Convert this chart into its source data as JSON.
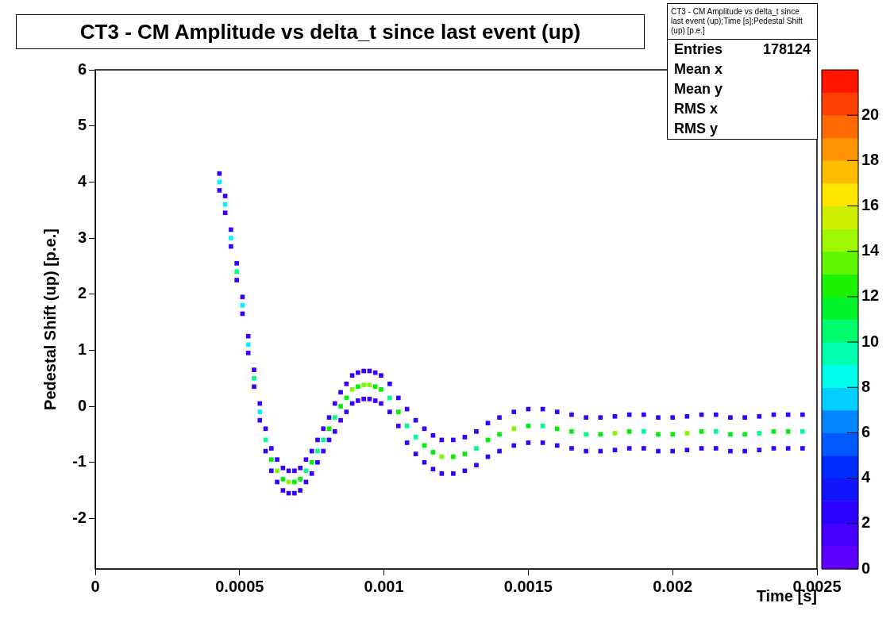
{
  "chart_data": {
    "type": "scatter",
    "title": "CT3 - CM Amplitude vs delta_t since last event (up)",
    "xlabel": "Time [s]",
    "ylabel": "Pedestal Shift (up) [p.e.]",
    "annotations": [
      "CT3 - CM Amplitude vs delta_t since last event (up);Time [s];Pedestal Shift (up) [p.e.]",
      "Entries",
      "178124",
      "Mean x",
      "Mean y",
      "RMS x",
      "RMS y"
    ],
    "x": [
      0.00043,
      0.00045,
      0.00047,
      0.00049,
      0.00051,
      0.00053,
      0.00055,
      0.00057,
      0.00059,
      0.00061,
      0.00063,
      0.00065,
      0.00067,
      0.00069,
      0.00071,
      0.00073,
      0.00075,
      0.00077,
      0.00079,
      0.00081,
      0.00083,
      0.00085,
      0.00087,
      0.00089,
      0.00091,
      0.00093,
      0.00095,
      0.00097,
      0.00099,
      0.00102,
      0.00105,
      0.00108,
      0.00111,
      0.00114,
      0.00117,
      0.0012,
      0.00124,
      0.00128,
      0.00132,
      0.00136,
      0.0014,
      0.00145,
      0.0015,
      0.00155,
      0.0016,
      0.00165,
      0.0017,
      0.00175,
      0.0018,
      0.00185,
      0.0019,
      0.00195,
      0.002,
      0.00205,
      0.0021,
      0.00215,
      0.0022,
      0.00225,
      0.0023,
      0.00235,
      0.0024,
      0.00245
    ],
    "series": [
      {
        "values": [
          4.15,
          3.75,
          3.15,
          2.55,
          1.95,
          1.25,
          0.65,
          0.05,
          -0.4,
          -0.75,
          -0.95,
          -1.1,
          -1.15,
          -1.15,
          -1.1,
          -0.95,
          -0.8,
          -0.6,
          -0.4,
          -0.2,
          0.05,
          0.25,
          0.4,
          0.55,
          0.6,
          0.63,
          0.63,
          0.6,
          0.55,
          0.4,
          0.15,
          -0.05,
          -0.25,
          -0.4,
          -0.52,
          -0.6,
          -0.6,
          -0.55,
          -0.45,
          -0.3,
          -0.2,
          -0.1,
          -0.05,
          -0.05,
          -0.1,
          -0.15,
          -0.2,
          -0.2,
          -0.18,
          -0.15,
          -0.15,
          -0.2,
          -0.2,
          -0.18,
          -0.15,
          -0.15,
          -0.2,
          -0.2,
          -0.18,
          -0.15,
          -0.15,
          -0.15
        ],
        "color": "#3800ff"
      },
      {
        "values": [
          4.0,
          3.6,
          3.0,
          2.4,
          1.8,
          1.1,
          0.5,
          -0.1,
          -0.6,
          -0.95,
          -1.15,
          -1.3,
          -1.35,
          -1.35,
          -1.3,
          -1.15,
          -1.0,
          -0.8,
          -0.6,
          -0.4,
          -0.2,
          0.0,
          0.15,
          0.3,
          0.35,
          0.38,
          0.38,
          0.35,
          0.3,
          0.15,
          -0.1,
          -0.35,
          -0.55,
          -0.7,
          -0.82,
          -0.9,
          -0.9,
          -0.85,
          -0.75,
          -0.6,
          -0.5,
          -0.4,
          -0.35,
          -0.35,
          -0.4,
          -0.45,
          -0.5,
          -0.5,
          -0.48,
          -0.45,
          -0.45,
          -0.5,
          -0.5,
          -0.48,
          -0.45,
          -0.45,
          -0.5,
          -0.5,
          -0.48,
          -0.45,
          -0.45,
          -0.45
        ],
        "colors": [
          "#00f5ff",
          "#00f5ff",
          "#00f5ff",
          "#00fe8f",
          "#00f5ff",
          "#00f5ff",
          "#00fe8f",
          "#00f5ff",
          "#00fe8f",
          "#00f107",
          "#82f900",
          "#00f107",
          "#82f900",
          "#00f107",
          "#00f107",
          "#00fe8f",
          "#00f107",
          "#00fe8f",
          "#00fe8f",
          "#00f107",
          "#00fe8f",
          "#00f107",
          "#00f107",
          "#82f900",
          "#00f107",
          "#82f900",
          "#82f900",
          "#00f107",
          "#00f107",
          "#00fe8f",
          "#00f107",
          "#00fe8f",
          "#00fe8f",
          "#00f107",
          "#00f107",
          "#82f900",
          "#00f107",
          "#00f107",
          "#00fe8f",
          "#00f107",
          "#00f107",
          "#82f900",
          "#00f107",
          "#00fe8f",
          "#00f107",
          "#00f107",
          "#00fe8f",
          "#00f107",
          "#82f900",
          "#00f107",
          "#00fe8f",
          "#00f107",
          "#00f107",
          "#82f900",
          "#00f107",
          "#00fe8f",
          "#00f107",
          "#00f107",
          "#00fe8f",
          "#00f107",
          "#00f107",
          "#00fe8f"
        ]
      },
      {
        "values": [
          3.85,
          3.45,
          2.85,
          2.25,
          1.65,
          0.95,
          0.35,
          -0.25,
          -0.8,
          -1.15,
          -1.35,
          -1.5,
          -1.55,
          -1.55,
          -1.5,
          -1.35,
          -1.2,
          -1.0,
          -0.8,
          -0.6,
          -0.45,
          -0.25,
          -0.1,
          0.05,
          0.1,
          0.13,
          0.13,
          0.1,
          0.05,
          -0.1,
          -0.35,
          -0.65,
          -0.85,
          -1.0,
          -1.12,
          -1.2,
          -1.2,
          -1.15,
          -1.05,
          -0.9,
          -0.8,
          -0.7,
          -0.65,
          -0.65,
          -0.7,
          -0.75,
          -0.8,
          -0.8,
          -0.78,
          -0.75,
          -0.75,
          -0.8,
          -0.8,
          -0.78,
          -0.75,
          -0.75,
          -0.8,
          -0.8,
          -0.78,
          -0.75,
          -0.75,
          -0.75
        ],
        "color": "#3800ff"
      }
    ],
    "xlim": [
      0,
      0.0025
    ],
    "xticks": [
      0,
      0.0005,
      0.001,
      0.0015,
      0.002,
      0.0025
    ],
    "ylim": [
      -2.9,
      6
    ],
    "yticks": [
      -2,
      -1,
      0,
      1,
      2,
      3,
      4,
      5,
      6
    ],
    "clim": [
      0,
      22
    ],
    "cticks": [
      0,
      2,
      4,
      6,
      8,
      10,
      12,
      14,
      16,
      18,
      20
    ],
    "marker": "square",
    "grid": false,
    "legend": false
  }
}
